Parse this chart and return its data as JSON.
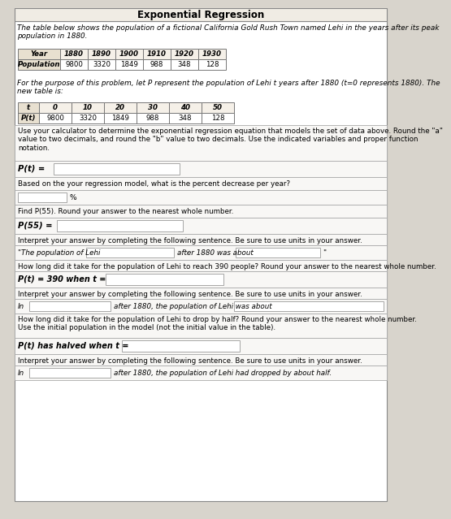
{
  "title": "Exponential Regression",
  "intro_text": "The table below shows the population of a fictional California Gold Rush Town named Lehi in the years after its peak\npopulation in 1880.",
  "table1_headers": [
    "Year",
    "1880",
    "1890",
    "1900",
    "1910",
    "1920",
    "1930"
  ],
  "table1_row": [
    "Population",
    "9800",
    "3320",
    "1849",
    "988",
    "348",
    "128"
  ],
  "middle_text": "For the purpose of this problem, let P represent the population of Lehi t years after 1880 (t=0 represents 1880). The\nnew table is:",
  "table2_headers": [
    "t",
    "0",
    "10",
    "20",
    "30",
    "40",
    "50"
  ],
  "table2_row": [
    "P(t)",
    "9800",
    "3320",
    "1849",
    "988",
    "348",
    "128"
  ],
  "section1_text": "Use your calculator to determine the exponential regression equation that models the set of data above. Round the \"a\"\nvalue to two decimals, and round the \"b\" value to two decimals. Use the indicated variables and proper function\nnotation.",
  "pt_label1": "P(t) =",
  "section2_text": "Based on the your regression model, what is the percent decrease per year?",
  "percent_suffix": "%",
  "section3_text": "Find P(55). Round your answer to the nearest whole number.",
  "p55_label": "P(55) =",
  "section3b_text": "Interpret your answer by completing the following sentence. Be sure to use units in your answer.",
  "quote_text": "\"The population of Lehi",
  "after_text1": "after 1880 was about",
  "period_suffix": "\"",
  "section4_text": "How long did it take for the population of Lehi to reach 390 people? Round your answer to the nearest whole number.",
  "pt_390_label": "P(t) = 390 when t =",
  "section4b_text": "Interpret your answer by completing the following sentence. Be sure to use units in your answer.",
  "in_label1": "In",
  "after_text2": "after 1880, the population of Lehi was about",
  "section5_text": "How long did it take for the population of Lehi to drop by half? Round your answer to the nearest whole number.\nUse the initial population in the model (not the initial value in the table).",
  "pt_half_label": "P(t) has halved when t =",
  "section5b_text": "Interpret your answer by completing the following sentence. Be sure to use units in your answer.",
  "in_label2": "In",
  "after_text3": "after 1880, the population of Lehi had dropped by about half.",
  "outer_bg": "#d8d4cc",
  "inner_bg": "#ffffff",
  "section_bg": "#f8f7f5",
  "table_header_bg": "#e8e0d0",
  "border_color": "#999999",
  "title_bar_bg": "#f0ece4"
}
